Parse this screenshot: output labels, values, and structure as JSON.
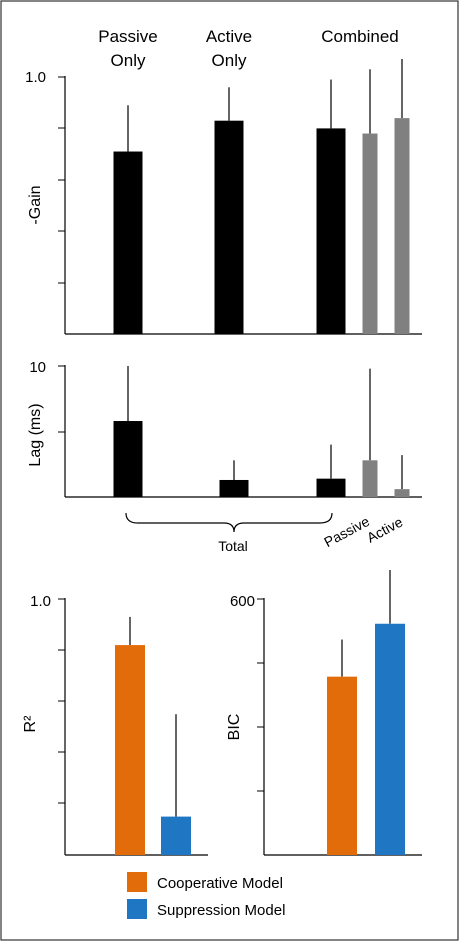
{
  "chart_data": [
    {
      "type": "bar",
      "column_headers": [
        {
          "lines": [
            "Passive",
            "Only"
          ]
        },
        {
          "lines": [
            "Active",
            "Only"
          ]
        },
        {
          "lines": [
            "Combined"
          ]
        }
      ],
      "ylabel": "-Gain",
      "yticklabels": [
        "1.0"
      ],
      "ylim": [
        0,
        1.0
      ],
      "bars": [
        {
          "group": "Passive Only",
          "value": 0.71,
          "error_top": 0.89,
          "color": "#000000"
        },
        {
          "group": "Active Only",
          "value": 0.83,
          "error_top": 0.96,
          "color": "#000000"
        },
        {
          "group": "Combined Total",
          "value": 0.8,
          "error_top": 0.99,
          "color": "#000000"
        },
        {
          "group": "Combined Passive",
          "value": 0.78,
          "error_top": 1.03,
          "color": "#808080"
        },
        {
          "group": "Combined Active",
          "value": 0.84,
          "error_top": 1.07,
          "color": "#808080"
        }
      ]
    },
    {
      "type": "bar",
      "ylabel": "Lag (ms)",
      "yticklabels": [
        "10"
      ],
      "ylim": [
        0,
        10
      ],
      "bars": [
        {
          "group": "Passive Only",
          "value": 5.8,
          "error_top": 10.0,
          "color": "#000000"
        },
        {
          "group": "Active Only",
          "value": 1.3,
          "error_top": 2.8,
          "color": "#000000"
        },
        {
          "group": "Combined Total",
          "value": 1.4,
          "error_top": 4.0,
          "color": "#000000"
        },
        {
          "group": "Combined Passive",
          "value": 2.8,
          "error_top": 9.8,
          "color": "#808080"
        },
        {
          "group": "Combined Active",
          "value": 0.6,
          "error_top": 3.2,
          "color": "#808080"
        }
      ],
      "bracket_label": "Total",
      "rotated_labels": [
        "Passive",
        "Active"
      ]
    },
    {
      "type": "bar",
      "ylabel": "R²",
      "yticklabels": [
        "1.0"
      ],
      "ylim": [
        0,
        1.0
      ],
      "bars": [
        {
          "series": "Cooperative Model",
          "value": 0.82,
          "error_top": 0.93,
          "color": "#E36C0A"
        },
        {
          "series": "Suppression Model",
          "value": 0.15,
          "error_top": 0.55,
          "color": "#1F77C4"
        }
      ]
    },
    {
      "type": "bar",
      "ylabel": "BIC",
      "yticklabels": [
        "600"
      ],
      "ylim": [
        0,
        600
      ],
      "bars": [
        {
          "series": "Cooperative Model",
          "value": 418,
          "error_top": 505,
          "color": "#E36C0A"
        },
        {
          "series": "Suppression Model",
          "value": 542,
          "error_top": 668,
          "color": "#1F77C4"
        }
      ]
    }
  ],
  "legend": [
    {
      "label": "Cooperative Model",
      "color": "#E36C0A"
    },
    {
      "label": "Suppression Model",
      "color": "#1F77C4"
    }
  ]
}
